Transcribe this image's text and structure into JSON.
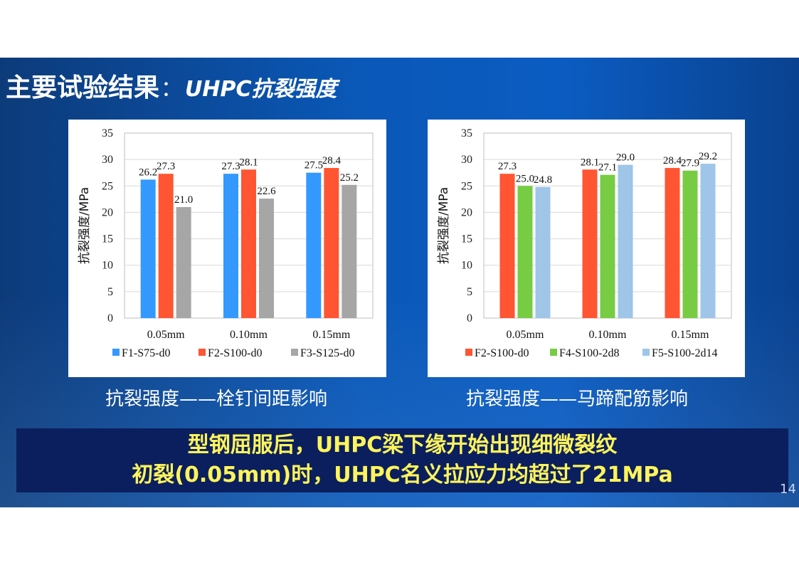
{
  "slide": {
    "title_main": "主要试验结果",
    "title_sep": "：",
    "title_sub": "UHPC抗裂强度",
    "page_number": "14"
  },
  "captions": [
    "抗裂强度——栓钉间距影响",
    "抗裂强度——马蹄配筋影响"
  ],
  "banner": {
    "line1": "型钢屈服后，UHPC梁下缘开始出现细微裂纹",
    "line2": "初裂(0.05mm)时，UHPC名义拉应力均超过了21MPa"
  },
  "chart_data": [
    {
      "type": "bar",
      "categories": [
        "0.05mm",
        "0.10mm",
        "0.15mm"
      ],
      "series": [
        {
          "name": "F1-S75-d0",
          "color": "#3399ff",
          "values": [
            26.2,
            27.3,
            27.5
          ]
        },
        {
          "name": "F2-S100-d0",
          "color": "#ff5533",
          "values": [
            27.3,
            28.1,
            28.4
          ]
        },
        {
          "name": "F3-S125-d0",
          "color": "#a6a6a6",
          "values": [
            21.0,
            22.6,
            25.2
          ]
        }
      ],
      "ylabel": "抗裂强度/MPa",
      "ylim": [
        0,
        35
      ],
      "yticks": [
        0,
        5,
        10,
        15,
        20,
        25,
        30,
        35
      ],
      "grid": true,
      "legend": "bottom"
    },
    {
      "type": "bar",
      "categories": [
        "0.05mm",
        "0.10mm",
        "0.15mm"
      ],
      "series": [
        {
          "name": "F2-S100-d0",
          "color": "#ff5533",
          "values": [
            27.3,
            28.1,
            28.4
          ]
        },
        {
          "name": "F4-S100-2d8",
          "color": "#77cc44",
          "values": [
            25.0,
            27.1,
            27.9
          ]
        },
        {
          "name": "F5-S100-2d14",
          "color": "#9fc5e8",
          "values": [
            24.8,
            29.0,
            29.2
          ]
        }
      ],
      "ylabel": "抗裂强度/MPa",
      "ylim": [
        0,
        35
      ],
      "yticks": [
        0,
        5,
        10,
        15,
        20,
        25,
        30,
        35
      ],
      "grid": true,
      "legend": "bottom"
    }
  ]
}
